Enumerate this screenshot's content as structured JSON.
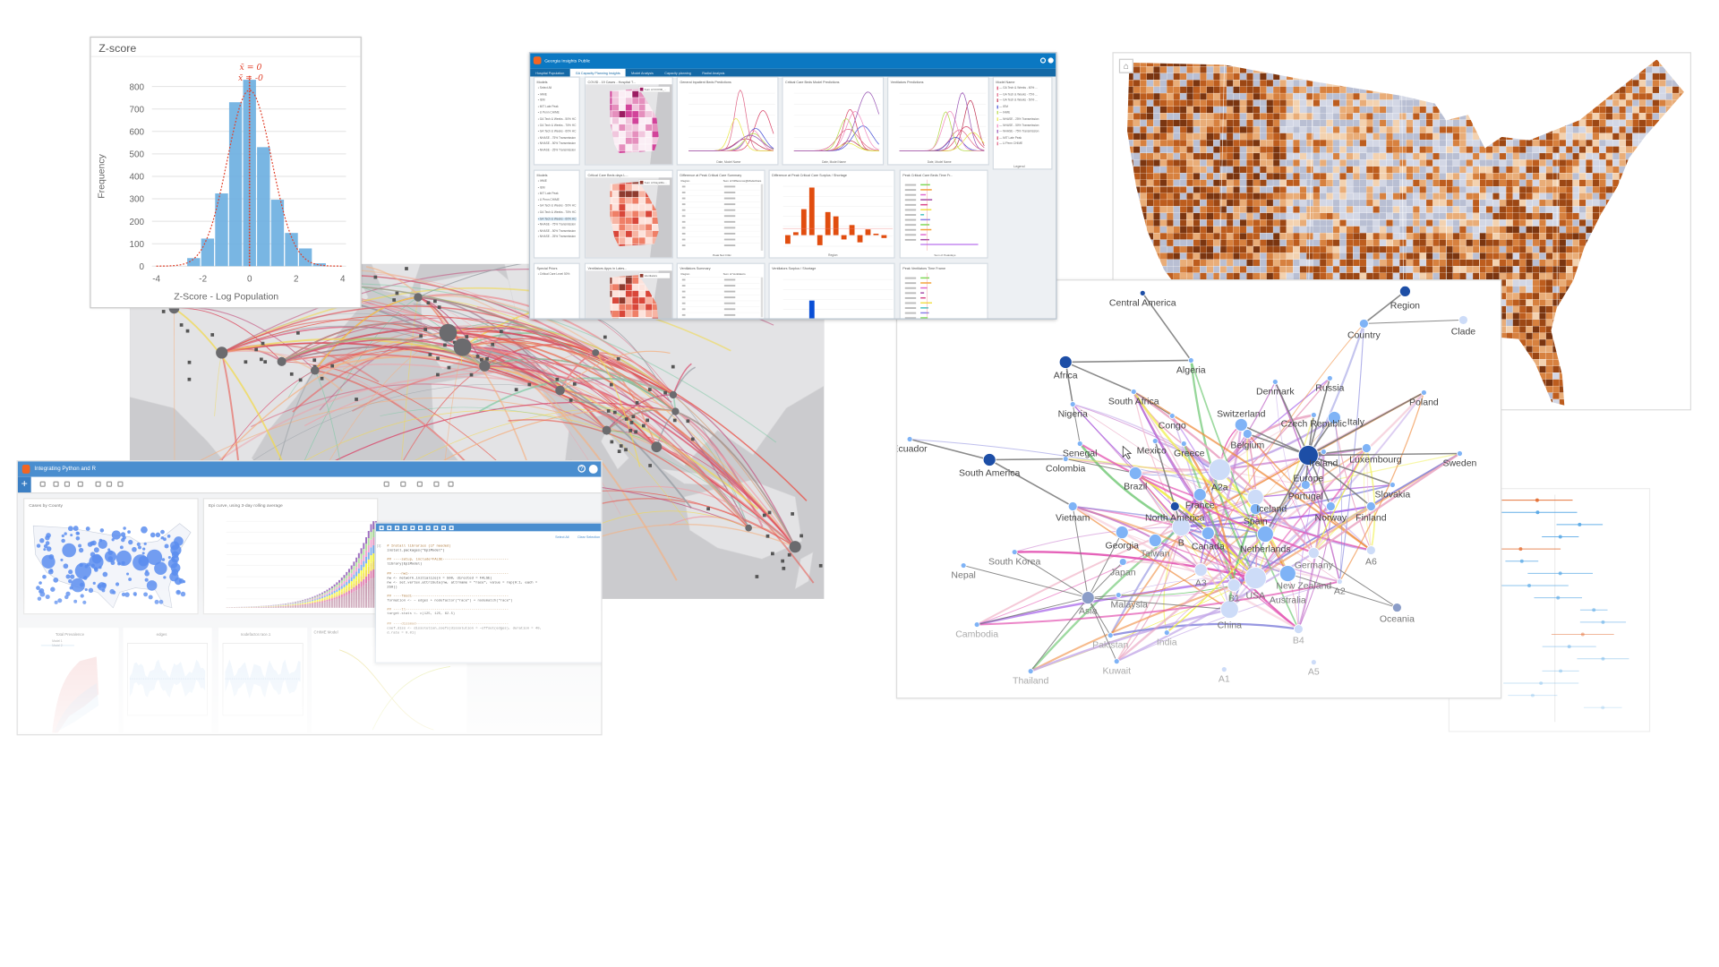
{
  "chart_data": {
    "type": "bar",
    "title": "Z-score",
    "xlabel": "Z-Score - Log Population",
    "ylabel": "Frequency",
    "bin_edges": [
      -2.7,
      -2.1,
      -1.5,
      -0.9,
      -0.3,
      0.3,
      0.9,
      1.5,
      2.1,
      2.7,
      3.3
    ],
    "values": [
      36,
      123,
      324,
      730,
      830,
      530,
      296,
      148,
      79,
      13
    ],
    "xlim": [
      -4,
      4
    ],
    "ylim": [
      0,
      850
    ],
    "xticks": [
      "-4",
      "-2",
      "0",
      "2",
      "4"
    ],
    "yticks": [
      "0",
      "100",
      "200",
      "300",
      "400",
      "500",
      "600",
      "700",
      "800"
    ],
    "annotations": [
      "x̄ = 0",
      "x̃ = -0"
    ],
    "fit_curve": {
      "type": "normal",
      "mean": 0,
      "sd": 0.95
    },
    "grid": true,
    "bar_color": "#6aaee0",
    "annotation_color": "#e0402a"
  },
  "flight_map": {
    "arc_colors": [
      "#e8584f",
      "#e57373",
      "#d9486b",
      "#f0a0a8",
      "#f2d94e",
      "#7fc9a5",
      "#9aa0a6",
      "#c24d7a",
      "#f4b183"
    ]
  },
  "dashboard": {
    "title": "Georgia Insights Public",
    "tabs": [
      "Hospital Population",
      "GA Capacity Planning Insights",
      "Model Analysis",
      "Capacity planning",
      "Radial Analysis"
    ],
    "active_tab": 1,
    "cards": [
      {
        "title": "Models",
        "type": "list",
        "items": [
          "Select All",
          "IHME",
          "IEM",
          "MIT Late Peak",
          "U Penn CHIME",
          "GA Tech & Weeks - 50% HC",
          "GA Tech & Weeks - 75% HC",
          "GA Tech & Weeks - 60% HC",
          "NHASE - 75% Transmission",
          "NHASE - 50% Transmission",
          "NHASE - 25% Transmission"
        ]
      },
      {
        "title": "COVID - 19 Cases - Hospital T...",
        "type": "map",
        "scheme": "pink",
        "legend": "Sum of COVID_..."
      },
      {
        "title": "General Inpatient Beds Predictions",
        "type": "lines",
        "xlabel": "Date, Model Name"
      },
      {
        "title": "Critical Care Beds Model Predictions",
        "type": "lines",
        "xlabel": "Date, Model Name"
      },
      {
        "title": "Ventilators Predictions",
        "type": "lines",
        "xlabel": "Date, Model Name"
      },
      {
        "title": "Model Name",
        "type": "legend",
        "footer": "Legend",
        "items": [
          "GA Tech & Weeks - 60% ...",
          "GA Tech & Weeks - 75% ...",
          "GA Tech & Weeks - 50% ...",
          "IEM",
          "IHME",
          "NHASE - 25% Transmission",
          "NHASE - 50% Transmission",
          "NHASE - 75% Transmission",
          "MIT Late Peak",
          "U Penn CHIME"
        ]
      },
      {
        "title": "Models",
        "type": "list",
        "selected": 6,
        "items": [
          "IHME",
          "IEM",
          "MIT Late Peak",
          "U Penn CHIME",
          "GA Tech & Weeks - 50% HC",
          "GA Tech & Weeks - 75% HC",
          "GA Tech & Weeks - 60% HC",
          "NHASE - 75% Transmission",
          "NHASE - 50% Transmission",
          "NHASE - 25% Transmission"
        ]
      },
      {
        "title": "Critical Care Beds days L...",
        "type": "map",
        "scheme": "red",
        "legend": "Sum of Days/Ru..."
      },
      {
        "title": "Difference at Peak Critical Care Summary",
        "type": "table",
        "columns": [
          "Region",
          "Sum of Difference@ModelCare"
        ],
        "footer": "Peak Net Critic"
      },
      {
        "title": "Difference at Peak Critical Care Surplus / Shortage",
        "type": "bars",
        "color": "#e14d0f",
        "values": [
          -60,
          20,
          180,
          330,
          -70,
          160,
          130,
          -30,
          70,
          -50,
          40,
          10,
          -20
        ],
        "xlabel": "Region"
      },
      {
        "title": "Peak Critical Care Beds Time Fr...",
        "type": "timeline",
        "xlabel": "Sum of Peakdays"
      },
      {
        "title": "Special Priors",
        "type": "list",
        "items": [
          "Critical Care Level 50%"
        ]
      },
      {
        "title": "Ventilators Apps in Lates...",
        "type": "map",
        "scheme": "red",
        "legend": "Ventilators"
      },
      {
        "title": "Ventilators Summary",
        "type": "table",
        "columns": [
          "Region",
          "Sum of Ventilators"
        ],
        "footer": ""
      },
      {
        "title": "Ventilators Surplus / Shortage",
        "type": "bars",
        "color": "#0a4fd6",
        "values": [
          0,
          60,
          80,
          300,
          0,
          130,
          120,
          0,
          15,
          0,
          70,
          50,
          40
        ],
        "xlabel": ""
      },
      {
        "title": "Peak Ventilators Time Frame",
        "type": "timeline",
        "xlabel": ""
      }
    ],
    "line_colors": [
      "#d9486b",
      "#e06a8a",
      "#c23b5a",
      "#4a53d6",
      "#b6d94a",
      "#e8e84a",
      "#f08cc0",
      "#9b59b6"
    ]
  },
  "choropleth": {
    "palette": [
      "#7a3510",
      "#9c4714",
      "#bd5d1e",
      "#d7813f",
      "#e9ad78",
      "#f3d2b0",
      "#b9bfd3",
      "#d3d7e5"
    ],
    "home_icon": "home-icon"
  },
  "network": {
    "nodes": [
      "Region",
      "Country",
      "Clade",
      "Central America",
      "Algeria",
      "Africa",
      "South Africa",
      "Congo",
      "Nigeria",
      "Senegal",
      "Ecuador",
      "South America",
      "Colombia",
      "Brazil",
      "Mexico",
      "Greece",
      "Denmark",
      "Russia",
      "Poland",
      "Czech Republic",
      "Italy",
      "Switzerland",
      "Belgium",
      "Europe",
      "Ireland",
      "Luxembourg",
      "Sweden",
      "A2a",
      "Portugal",
      "Slovakia",
      "France",
      "Iceland",
      "North America",
      "Norway",
      "Finland",
      "Spain",
      "B",
      "Canada",
      "Georgia",
      "Taiwan",
      "Netherlands",
      "Germany",
      "A6",
      "Vietnam",
      "South Korea",
      "Japan",
      "A3",
      "New Zealand",
      "Australia",
      "USA",
      "B1",
      "A2",
      "Oceania",
      "Malaysia",
      "China",
      "Asia",
      "Nepal",
      "Cambodia",
      "Pakistan",
      "India",
      "B4",
      "Kuwait",
      "Thailand",
      "A5",
      "A1"
    ],
    "edges": [
      [
        "Region",
        "Country"
      ],
      [
        "Country",
        "Clade"
      ],
      [
        "Central America",
        "Algeria"
      ],
      [
        "Africa",
        "Algeria"
      ],
      [
        "Africa",
        "South Africa"
      ],
      [
        "South Africa",
        "Congo"
      ],
      [
        "Africa",
        "Nigeria"
      ],
      [
        "Nigeria",
        "Senegal"
      ],
      [
        "South America",
        "Ecuador"
      ],
      [
        "South America",
        "Colombia"
      ],
      [
        "Colombia",
        "Brazil"
      ],
      [
        "South America",
        "Vietnam"
      ],
      [
        "Europe",
        "Denmark"
      ],
      [
        "Europe",
        "Russia"
      ],
      [
        "Europe",
        "Poland"
      ],
      [
        "Europe",
        "Sweden"
      ],
      [
        "Europe",
        "Finland"
      ],
      [
        "Europe",
        "Slovakia"
      ],
      [
        "Europe",
        "Portugal"
      ],
      [
        "Europe",
        "Norway"
      ],
      [
        "Europe",
        "Netherlands"
      ],
      [
        "Europe",
        "Switzerland"
      ],
      [
        "Europe",
        "Czech Republic"
      ],
      [
        "Europe",
        "Ireland"
      ],
      [
        "Europe",
        "Luxembourg"
      ],
      [
        "Europe",
        "Italy"
      ],
      [
        "Europe",
        "Belgium"
      ],
      [
        "North America",
        "Mexico"
      ],
      [
        "North America",
        "B"
      ],
      [
        "North America",
        "Canada"
      ],
      [
        "Oceania",
        "Australia"
      ],
      [
        "Oceania",
        "Germany"
      ],
      [
        "Asia",
        "China"
      ],
      [
        "Asia",
        "Malaysia"
      ],
      [
        "Asia",
        "Nepal"
      ],
      [
        "Asia",
        "Cambodia"
      ],
      [
        "Asia",
        "Pakistan"
      ],
      [
        "Asia",
        "Thailand"
      ],
      [
        "Asia",
        "South Korea"
      ],
      [
        "Asia",
        "Vietnam"
      ],
      [
        "Asia",
        "Georgia"
      ],
      [
        "Asia",
        "Japan"
      ],
      [
        "Asia",
        "Kuwait"
      ]
    ],
    "colors": {
      "region": "#1d4ea6",
      "country": "#7fb3f6",
      "clade": "#cddcf8",
      "oceania": "#8b9dc8",
      "hier_edge": "#777777"
    },
    "edge_colors": [
      "#e9a3c1",
      "#c36fc9",
      "#a560e8",
      "#f0f04a",
      "#ef8a3a",
      "#66c46a",
      "#e24fb0",
      "#8888dd",
      "#f3c0d0",
      "#c3a8e8"
    ]
  },
  "forest_plot": {
    "colors": {
      "point": "#5aa9e6",
      "highlight": "#e5743b"
    }
  },
  "python_panel": {
    "title": "Integrating Python and R",
    "help": "?",
    "add": "+",
    "cards": [
      "Cases by County",
      "Epi curve, using 3-day rolling average"
    ],
    "code": {
      "select_all": "Select All",
      "clear_selection": "Clear Selection",
      "prompt": "[1]:",
      "lines": [
        "# Install libraries (if needed)",
        "install.packages(\"EpiModel\")",
        "",
        "## ----setup, include=FALSE--------------------------------",
        "library(EpiModel)",
        "",
        "## ----nw1-------------------------------------------------",
        "nw <- network.initialize(n = 500, directed = FALSE)",
        "nw <- set.vertex.attribute(nw, attrname = \"race\", value = rep(0:1, each =",
        "250))",
        "",
        "## ----fmod1-----------------------------------------------",
        "formation <- ~ edges + nodefactor(\"race\") + nodematch(\"race\")",
        "",
        "## ----tl--------------------------------------------------",
        "target.stats <- c(125, 125, 62.5)",
        "",
        "## ----dissmod---------------------------------------------",
        "coef.diss <- dissolution_coefs(dissolution = ~offset(edges), duration = 40,",
        "d.rate = 0.01)"
      ]
    },
    "bottom": [
      "Total Prevalence",
      "edges",
      "nodefactor.race.1",
      "CHIME Model"
    ],
    "legend": [
      "Model 1",
      "Model 2"
    ],
    "colors": {
      "header": "#4a8ecf",
      "dots": "#5b8def",
      "model1": "#9fc5e8",
      "model2": "#e06666"
    }
  }
}
